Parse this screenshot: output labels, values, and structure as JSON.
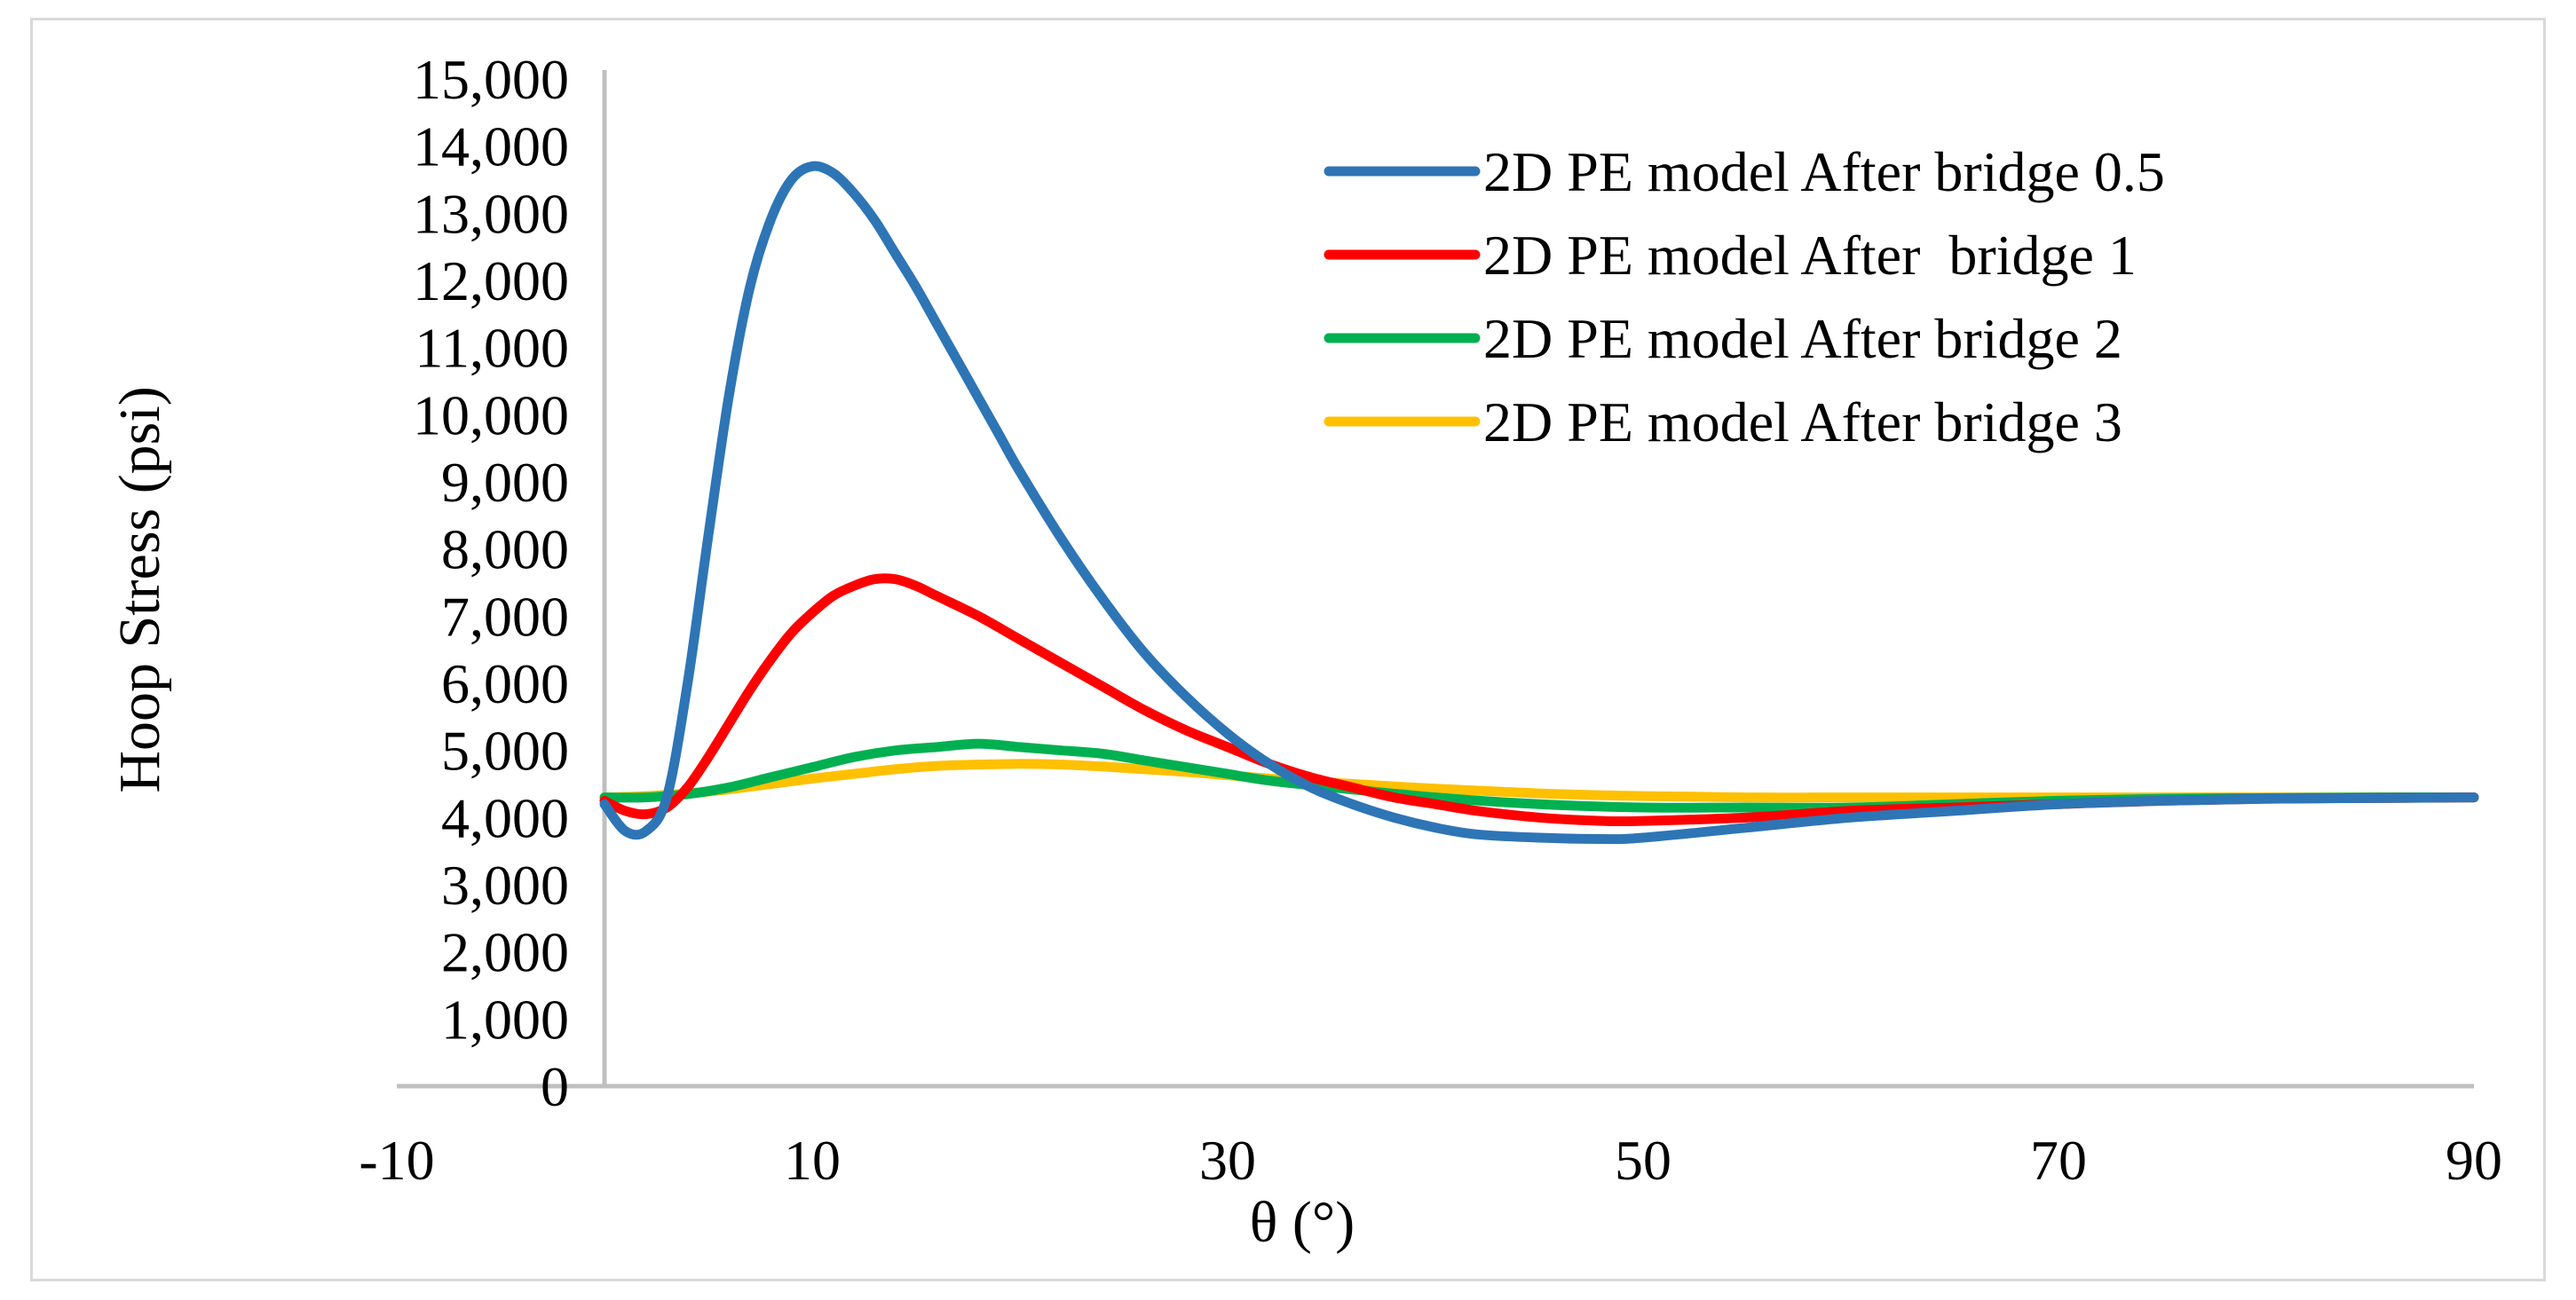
{
  "chart_data": {
    "type": "line",
    "title": "",
    "xlabel": "θ (°)",
    "ylabel": "Hoop Stress (psi)",
    "xlim": [
      -10,
      90
    ],
    "ylim": [
      0,
      15000
    ],
    "x_ticks": [
      -10,
      10,
      30,
      50,
      70,
      90
    ],
    "x_tick_labels": [
      "-10",
      "10",
      "30",
      "50",
      "70",
      "90"
    ],
    "y_ticks": [
      0,
      1000,
      2000,
      3000,
      4000,
      5000,
      6000,
      7000,
      8000,
      9000,
      10000,
      11000,
      12000,
      13000,
      14000,
      15000
    ],
    "y_tick_labels": [
      "0",
      "1,000",
      "2,000",
      "3,000",
      "4,000",
      "5,000",
      "6,000",
      "7,000",
      "8,000",
      "9,000",
      "10,000",
      "11,000",
      "12,000",
      "13,000",
      "14,000",
      "15,000"
    ],
    "grid": false,
    "legend_position": "top-right",
    "series": [
      {
        "name": "2D PE model After bridge 0.5",
        "color": "#2e75b6",
        "points": [
          [
            0,
            4200
          ],
          [
            1,
            3800
          ],
          [
            2,
            3800
          ],
          [
            3,
            4300
          ],
          [
            4,
            6000
          ],
          [
            5,
            8200
          ],
          [
            6,
            10300
          ],
          [
            7,
            11900
          ],
          [
            8,
            12900
          ],
          [
            9,
            13500
          ],
          [
            10,
            13700
          ],
          [
            11,
            13600
          ],
          [
            12,
            13300
          ],
          [
            13,
            12900
          ],
          [
            14,
            12400
          ],
          [
            15,
            11900
          ],
          [
            16,
            11350
          ],
          [
            17,
            10800
          ],
          [
            18,
            10250
          ],
          [
            19,
            9700
          ],
          [
            20,
            9150
          ],
          [
            22,
            8150
          ],
          [
            24,
            7250
          ],
          [
            26,
            6450
          ],
          [
            28,
            5800
          ],
          [
            30,
            5250
          ],
          [
            32,
            4800
          ],
          [
            34,
            4450
          ],
          [
            36,
            4200
          ],
          [
            38,
            4000
          ],
          [
            40,
            3850
          ],
          [
            42,
            3750
          ],
          [
            45,
            3700
          ],
          [
            48,
            3680
          ],
          [
            50,
            3700
          ],
          [
            55,
            3850
          ],
          [
            60,
            4000
          ],
          [
            65,
            4100
          ],
          [
            70,
            4200
          ],
          [
            75,
            4250
          ],
          [
            80,
            4280
          ],
          [
            85,
            4290
          ],
          [
            90,
            4300
          ]
        ]
      },
      {
        "name": "2D PE model After  bridge 1",
        "color": "#ff0000",
        "points": [
          [
            0,
            4250
          ],
          [
            1,
            4100
          ],
          [
            2,
            4050
          ],
          [
            3,
            4150
          ],
          [
            4,
            4450
          ],
          [
            5,
            4900
          ],
          [
            6,
            5400
          ],
          [
            7,
            5900
          ],
          [
            8,
            6350
          ],
          [
            9,
            6750
          ],
          [
            10,
            7050
          ],
          [
            11,
            7300
          ],
          [
            12,
            7450
          ],
          [
            13,
            7550
          ],
          [
            14,
            7550
          ],
          [
            15,
            7450
          ],
          [
            16,
            7300
          ],
          [
            18,
            7000
          ],
          [
            20,
            6650
          ],
          [
            22,
            6300
          ],
          [
            24,
            5950
          ],
          [
            26,
            5600
          ],
          [
            28,
            5300
          ],
          [
            30,
            5050
          ],
          [
            32,
            4800
          ],
          [
            34,
            4600
          ],
          [
            36,
            4450
          ],
          [
            38,
            4300
          ],
          [
            40,
            4200
          ],
          [
            42,
            4100
          ],
          [
            45,
            4000
          ],
          [
            48,
            3950
          ],
          [
            50,
            3950
          ],
          [
            55,
            4000
          ],
          [
            60,
            4100
          ],
          [
            65,
            4150
          ],
          [
            70,
            4200
          ],
          [
            75,
            4250
          ],
          [
            80,
            4280
          ],
          [
            85,
            4290
          ],
          [
            90,
            4300
          ]
        ]
      },
      {
        "name": "2D PE model After bridge 2",
        "color": "#00b050",
        "points": [
          [
            0,
            4300
          ],
          [
            2,
            4300
          ],
          [
            4,
            4350
          ],
          [
            6,
            4450
          ],
          [
            8,
            4600
          ],
          [
            10,
            4750
          ],
          [
            12,
            4900
          ],
          [
            14,
            5000
          ],
          [
            16,
            5050
          ],
          [
            18,
            5100
          ],
          [
            20,
            5050
          ],
          [
            22,
            5000
          ],
          [
            24,
            4950
          ],
          [
            26,
            4850
          ],
          [
            28,
            4750
          ],
          [
            30,
            4650
          ],
          [
            32,
            4550
          ],
          [
            35,
            4450
          ],
          [
            40,
            4300
          ],
          [
            45,
            4200
          ],
          [
            50,
            4150
          ],
          [
            55,
            4150
          ],
          [
            60,
            4150
          ],
          [
            65,
            4200
          ],
          [
            70,
            4250
          ],
          [
            75,
            4280
          ],
          [
            80,
            4290
          ],
          [
            85,
            4300
          ],
          [
            90,
            4300
          ]
        ]
      },
      {
        "name": "2D PE model After bridge 3",
        "color": "#ffc000",
        "points": [
          [
            0,
            4300
          ],
          [
            2,
            4320
          ],
          [
            4,
            4360
          ],
          [
            6,
            4420
          ],
          [
            8,
            4500
          ],
          [
            10,
            4580
          ],
          [
            12,
            4650
          ],
          [
            14,
            4720
          ],
          [
            16,
            4770
          ],
          [
            18,
            4790
          ],
          [
            20,
            4800
          ],
          [
            22,
            4790
          ],
          [
            24,
            4760
          ],
          [
            26,
            4720
          ],
          [
            28,
            4680
          ],
          [
            30,
            4630
          ],
          [
            32,
            4580
          ],
          [
            35,
            4520
          ],
          [
            40,
            4430
          ],
          [
            45,
            4360
          ],
          [
            50,
            4320
          ],
          [
            55,
            4300
          ],
          [
            60,
            4300
          ],
          [
            65,
            4300
          ],
          [
            70,
            4300
          ],
          [
            75,
            4300
          ],
          [
            80,
            4300
          ],
          [
            85,
            4300
          ],
          [
            90,
            4300
          ]
        ]
      }
    ]
  }
}
